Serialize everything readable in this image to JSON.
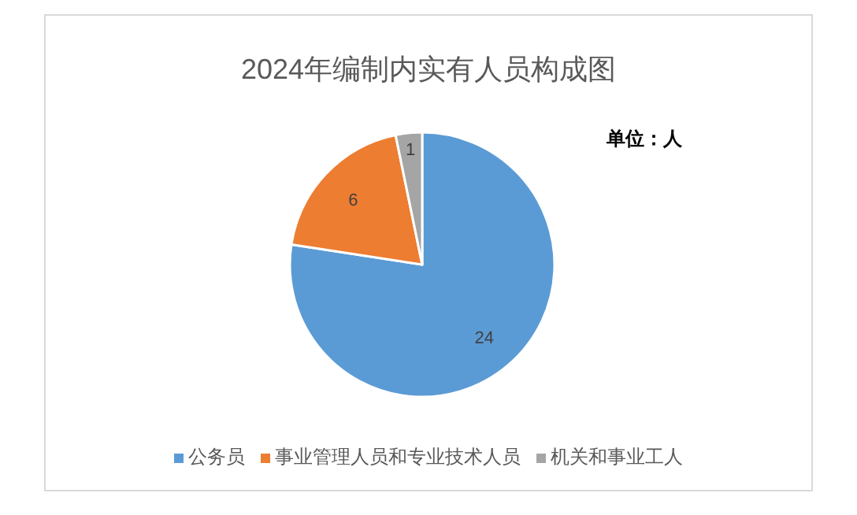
{
  "chart_data": {
    "type": "pie",
    "title": "2024年编制内实有人员构成图",
    "categories": [
      "公务员",
      "事业管理人员和专业技术人员",
      "机关和事业工人"
    ],
    "values": [
      24,
      6,
      1
    ],
    "colors": [
      "#5b9bd5",
      "#ed7d31",
      "#a5a5a5"
    ],
    "data_labels": true,
    "legend": "bottom",
    "annotations": [
      "单位：人"
    ]
  }
}
